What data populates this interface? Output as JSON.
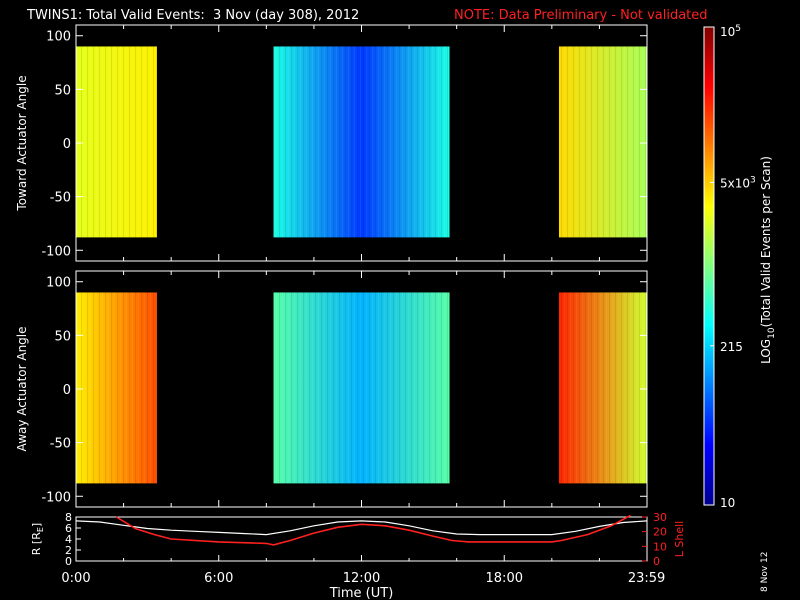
{
  "header": {
    "title": "TWINS1: Total Valid Events:  3 Nov (day 308), 2012",
    "note": "NOTE: Data Preliminary - Not validated"
  },
  "footer": {
    "plot_date": "8 Nov 12"
  },
  "colors": {
    "background": "#000000",
    "axis": "#ffffff",
    "note": "#ff2020",
    "lshell": "#ff2020",
    "radius_curve": "#ffffff"
  },
  "chart_data": [
    {
      "id": "toward",
      "type": "heatmap",
      "ylabel": "Toward Actuator Angle",
      "xlim": [
        0,
        24
      ],
      "ylim": [
        -110,
        110
      ],
      "yticks": [
        -100,
        -50,
        0,
        50,
        100
      ],
      "yticklabels": [
        "-100",
        "-50",
        "0",
        "50",
        "100"
      ],
      "data_ylim": [
        -88,
        90
      ],
      "blocks": [
        {
          "start": 0.0,
          "end": 3.4,
          "colorLevel_left": 0.6,
          "colorLevel_right": 0.64
        },
        {
          "start": 8.3,
          "end": 15.7,
          "colorLevel_left": 0.4,
          "colorLevel_mid": 0.18,
          "colorLevel_right": 0.4
        },
        {
          "start": 20.3,
          "end": 24.0,
          "colorLevel_left": 0.66,
          "colorLevel_right": 0.54
        }
      ]
    },
    {
      "id": "away",
      "type": "heatmap",
      "ylabel": "Away Actuator Angle",
      "xlim": [
        0,
        24
      ],
      "ylim": [
        -110,
        110
      ],
      "yticks": [
        -100,
        -50,
        0,
        50,
        100
      ],
      "yticklabels": [
        "-100",
        "-50",
        "0",
        "50",
        "100"
      ],
      "data_ylim": [
        -88,
        90
      ],
      "blocks": [
        {
          "start": 0.0,
          "end": 3.4,
          "colorLevel_left": 0.64,
          "colorLevel_right": 0.8
        },
        {
          "start": 8.3,
          "end": 15.7,
          "colorLevel_left": 0.46,
          "colorLevel_mid": 0.3,
          "colorLevel_right": 0.46
        },
        {
          "start": 20.3,
          "end": 24.0,
          "colorLevel_left": 0.84,
          "colorLevel_right": 0.58
        }
      ]
    },
    {
      "id": "orbit",
      "type": "line",
      "xlabel": "Time (UT)",
      "xlim": [
        0,
        24
      ],
      "xticks": [
        0,
        6,
        12,
        18,
        23.983
      ],
      "xticklabels": [
        "0:00",
        "6:00",
        "12:00",
        "18:00",
        "23:59"
      ],
      "ylabel_left": "R [R",
      "ylabel_left_sub": "E",
      "ylabel_left_end": "]",
      "ylim_left": [
        0,
        8
      ],
      "yticks_left": [
        0,
        2,
        4,
        6,
        8
      ],
      "yticklabels_left": [
        "0",
        "2",
        "4",
        "6",
        "8"
      ],
      "ylabel_right": "L Shell",
      "ylim_right": [
        0,
        30
      ],
      "yticks_right": [
        0,
        10,
        20,
        30
      ],
      "yticklabels_right": [
        "0",
        "10",
        "20",
        "30"
      ],
      "series": [
        {
          "axis": "left",
          "x": [
            0,
            1,
            2,
            3,
            4,
            5,
            6,
            7,
            8,
            9,
            10,
            11,
            12,
            13,
            14,
            15,
            16,
            17,
            18,
            19,
            20,
            21,
            22,
            23,
            24
          ],
          "y": [
            7.3,
            7.1,
            6.5,
            5.9,
            5.6,
            5.4,
            5.2,
            5.0,
            4.8,
            5.5,
            6.4,
            7.1,
            7.3,
            7.1,
            6.4,
            5.5,
            4.9,
            4.8,
            4.8,
            4.8,
            4.8,
            5.4,
            6.3,
            7.0,
            7.3
          ]
        },
        {
          "axis": "right",
          "x": [
            1.7,
            2.5,
            3.3,
            4.0,
            6.0,
            8.0,
            8.3,
            9.0,
            10.0,
            11.0,
            12.0,
            13.0,
            14.0,
            15.0,
            15.8,
            16.5,
            18.0,
            20.0,
            20.4,
            21.5,
            22.5,
            23.3
          ],
          "y": [
            30,
            22,
            18,
            15,
            13,
            12,
            11,
            14,
            19,
            23,
            25,
            24,
            21,
            17,
            14,
            13,
            13,
            13,
            14,
            18,
            24,
            31
          ]
        }
      ]
    }
  ],
  "colorbar": {
    "label_prefix": "LOG",
    "label_sub": "10",
    "label_rest": "(Total Valid Events per Scan)",
    "min": 10,
    "max": 100000,
    "ticks": [
      {
        "base": "10",
        "sup": ""
      },
      {
        "base": "215",
        "sup": ""
      },
      {
        "base": "5x10",
        "sup": "3"
      },
      {
        "base": "10",
        "sup": "5"
      }
    ],
    "tick_values": [
      10,
      215,
      5000,
      100000
    ]
  }
}
